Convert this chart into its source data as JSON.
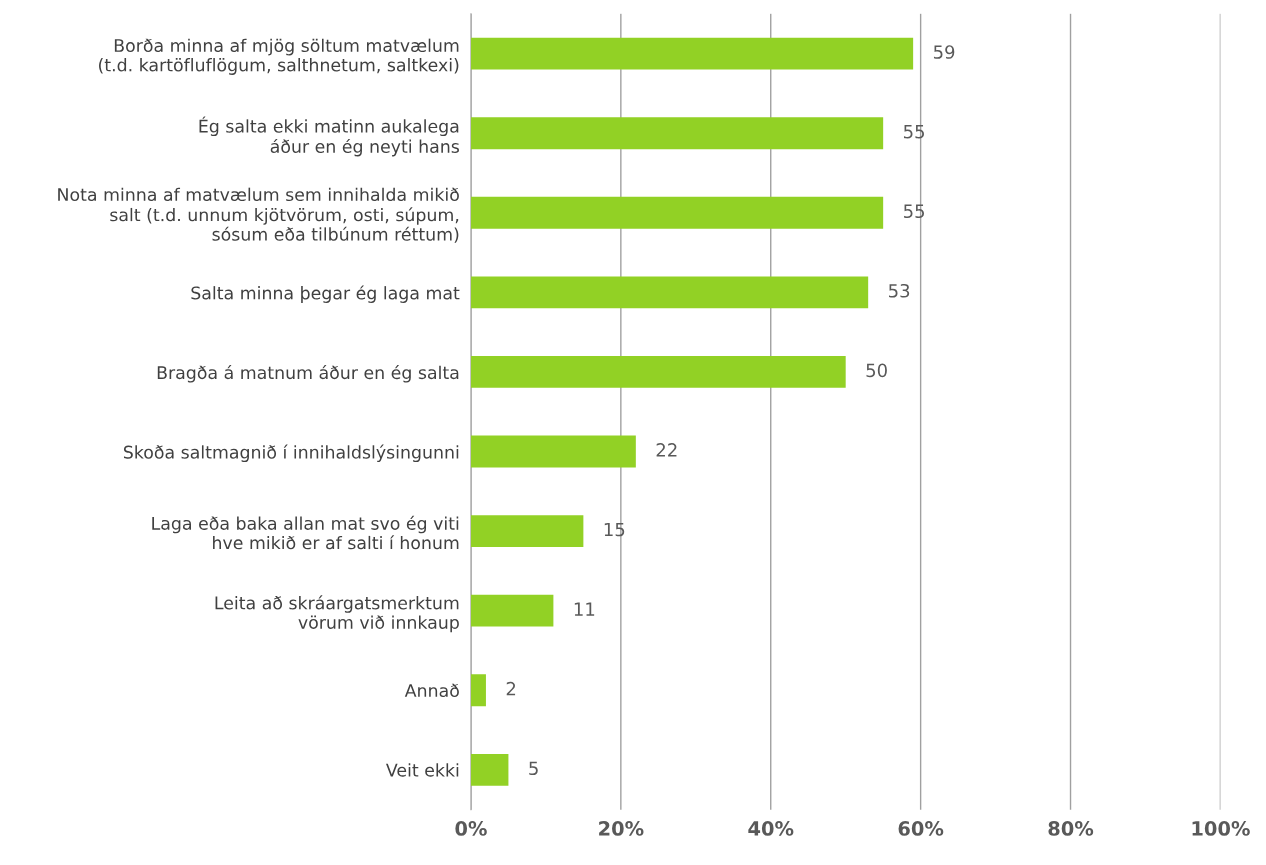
{
  "chart_data": {
    "type": "bar",
    "orientation": "horizontal",
    "categories": [
      "Borða minna af mjög söltum matvælum\n(t.d. kartöfluflögum, salthnetum, saltkexi)",
      "Ég salta ekki matinn aukalega\náður en ég neyti hans",
      "Nota minna af matvælum sem innihalda mikið\nsalt (t.d. unnum kjötvörum, osti, súpum,\nsósum eða tilbúnum réttum)",
      "Salta minna þegar ég laga mat",
      "Bragða á matnum áður en ég salta",
      "Skoða saltmagnið í innihaldslýsingunni",
      "Laga eða baka allan mat svo ég viti\nhve mikið er af salti í honum",
      "Leita að skráargatsmerktum\nvörum við innkaup",
      "Annað",
      "Veit ekki"
    ],
    "values": [
      59,
      55,
      55,
      53,
      50,
      22,
      15,
      11,
      2,
      5
    ],
    "color": "#92d125",
    "xlim": [
      0,
      100
    ],
    "xticks": [
      {
        "value": 0,
        "label": "0%"
      },
      {
        "value": 20,
        "label": "20%"
      },
      {
        "value": 40,
        "label": "40%"
      },
      {
        "value": 60,
        "label": "60%"
      },
      {
        "value": 80,
        "label": "80%"
      },
      {
        "value": 100,
        "label": "100%"
      }
    ],
    "grid": "x",
    "data_labels": true
  }
}
